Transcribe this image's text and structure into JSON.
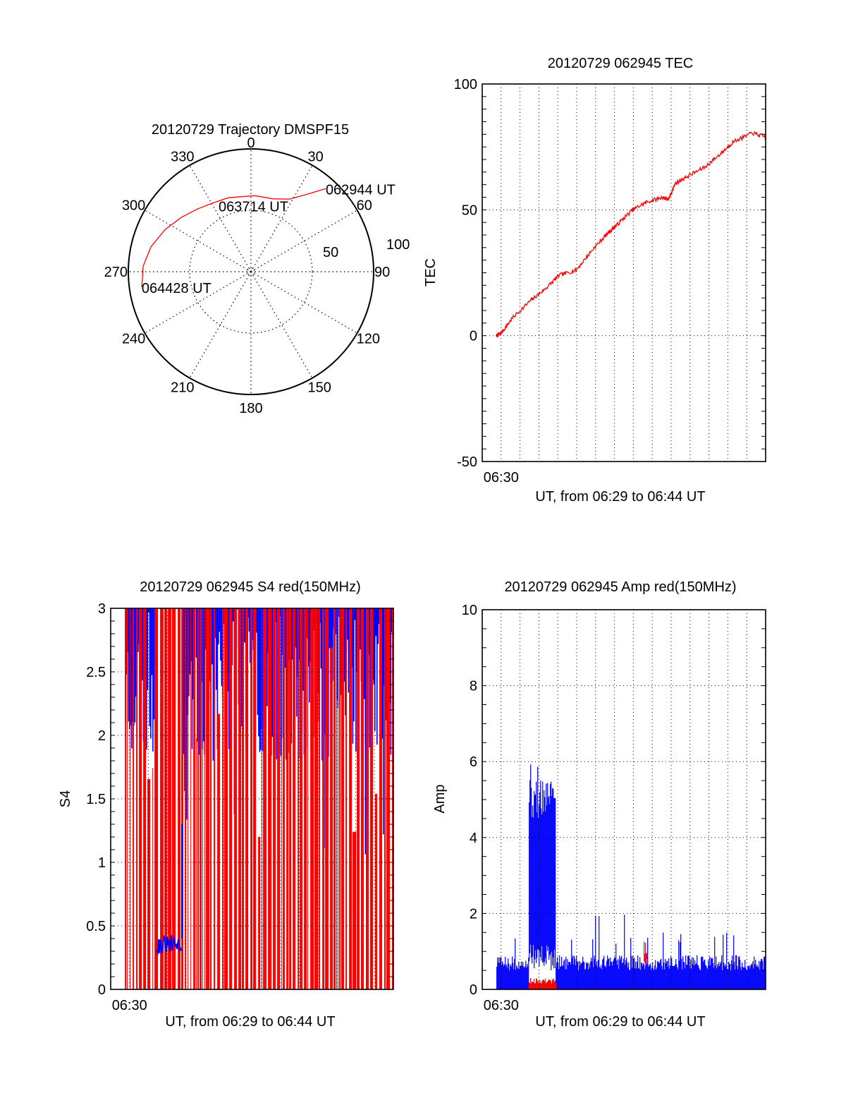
{
  "colors": {
    "red": "#ff0000",
    "blue": "#0000ff",
    "axis": "#000000",
    "background": "#ffffff"
  },
  "chart_data": [
    {
      "id": "trajectory",
      "type": "polar",
      "title": "20120729 Trajectory DMSPF15",
      "angle_labels": [
        "0",
        "30",
        "60",
        "90",
        "120",
        "150",
        "180",
        "210",
        "240",
        "270",
        "300",
        "330"
      ],
      "angle_values_deg": [
        0,
        30,
        60,
        90,
        120,
        150,
        180,
        210,
        240,
        270,
        300,
        330
      ],
      "radial_labels": [
        "50",
        "100"
      ],
      "radial_values": [
        50,
        100
      ],
      "rmax": 100,
      "grid": true,
      "series": [
        {
          "name": "trajectory",
          "color": "#ff0000",
          "points_az_r": [
            [
              42,
              91
            ],
            [
              36,
              78
            ],
            [
              28,
              67
            ],
            [
              17,
              62
            ],
            [
              3,
              62
            ],
            [
              343,
              63
            ],
            [
              331,
              64
            ],
            [
              320,
              67
            ],
            [
              308,
              72
            ],
            [
              296,
              78
            ],
            [
              284,
              84
            ],
            [
              273,
              88
            ],
            [
              265,
              89
            ],
            [
              262,
              90
            ]
          ]
        }
      ],
      "annotations": [
        {
          "text": "062944 UT",
          "at_az_r": [
            42,
            91
          ]
        },
        {
          "text": "063714 UT",
          "at_az_r": [
            331,
            64
          ]
        },
        {
          "text": "064428 UT",
          "at_az_r": [
            262,
            90
          ]
        }
      ]
    },
    {
      "id": "tec",
      "type": "line",
      "title": "20120729 062945 TEC",
      "xlabel": "UT, from 06:29 to 06:44 UT",
      "ylabel": "TEC",
      "x_unit": "minutes after 06:29",
      "xlim": [
        0,
        15
      ],
      "ylim": [
        -50,
        100
      ],
      "yticks": [
        -50,
        0,
        50,
        100
      ],
      "ytick_labels": [
        "-50",
        "0",
        "50",
        "100"
      ],
      "xtick_labels": [
        {
          "x": 1,
          "label": "06:30"
        }
      ],
      "x_grid_step": 1,
      "y_minor_step": 5,
      "grid": true,
      "series": [
        {
          "name": "TEC",
          "color": "#ff0000",
          "x": [
            0.75,
            1.0,
            1.6,
            2.57,
            3.32,
            4.07,
            4.96,
            5.93,
            6.68,
            7.2,
            7.95,
            8.69,
            9.55,
            9.85,
            10.22,
            10.78,
            11.79,
            12.65,
            13.28,
            14.29,
            15.0
          ],
          "y": [
            0,
            1,
            7,
            14,
            18.5,
            24,
            26,
            35,
            41,
            44.5,
            50,
            53,
            55,
            54,
            60.5,
            63,
            67,
            72.5,
            77,
            80.5,
            79
          ]
        }
      ]
    },
    {
      "id": "s4",
      "type": "bar",
      "title": "20120729 062945 S4 red(150MHz)",
      "xlabel": "UT, from 06:29 to 06:44 UT",
      "ylabel": "S4",
      "x_unit": "minutes after 06:29",
      "xlim": [
        0,
        15
      ],
      "ylim": [
        0,
        3
      ],
      "yticks": [
        0,
        0.5,
        1,
        1.5,
        2,
        2.5,
        3
      ],
      "ytick_labels": [
        "0",
        "0.5",
        "1",
        "1.5",
        "2",
        "2.5",
        "3"
      ],
      "xtick_labels": [
        {
          "x": 1,
          "label": "06:30"
        }
      ],
      "x_grid_step": 1,
      "y_minor_step": 0.1,
      "grid": true,
      "series": [
        {
          "name": "S4 red (150MHz)",
          "color": "#ff0000",
          "x_start": 0.75,
          "x_end": 15.0,
          "typical_value": 3,
          "note_saturated": "values clipped at 3"
        },
        {
          "name": "S4 blue",
          "color": "#0000ff",
          "x_start": 0.75,
          "x_end": 15.0,
          "typical_range": [
            1.8,
            3.0
          ],
          "low_segment": {
            "x_start": 2.43,
            "x_end": 3.78,
            "range": [
              0.28,
              0.42
            ]
          }
        }
      ]
    },
    {
      "id": "amp",
      "type": "bar",
      "title": "20120729 062945 Amp red(150MHz)",
      "xlabel": "UT, from 06:29 to 06:44 UT",
      "ylabel": "Amp",
      "x_unit": "minutes after 06:29",
      "xlim": [
        0,
        15
      ],
      "ylim": [
        0,
        10
      ],
      "yticks": [
        0,
        2,
        4,
        6,
        8,
        10
      ],
      "ytick_labels": [
        "0",
        "2",
        "4",
        "6",
        "8",
        "10"
      ],
      "xtick_labels": [
        {
          "x": 1,
          "label": "06:30"
        }
      ],
      "x_grid_step": 1,
      "y_minor_step": 0.5,
      "grid": true,
      "series": [
        {
          "name": "Amp blue",
          "color": "#0000ff",
          "x_start": 0.75,
          "x_end": 15.0,
          "typical_range": [
            0.5,
            0.9
          ],
          "spike_max": 2.0,
          "burst": {
            "x_start": 2.46,
            "x_end": 3.88,
            "range": [
              4.5,
              5.6
            ],
            "peak": 6.4
          }
        },
        {
          "name": "Amp red (150MHz)",
          "color": "#ff0000",
          "segments": [
            {
              "x_start": 2.46,
              "x_end": 3.88,
              "range": [
                0.15,
                0.3
              ]
            },
            {
              "x_start": 8.55,
              "x_end": 8.7,
              "range": [
                0.9,
                1.3
              ]
            }
          ]
        }
      ]
    }
  ]
}
